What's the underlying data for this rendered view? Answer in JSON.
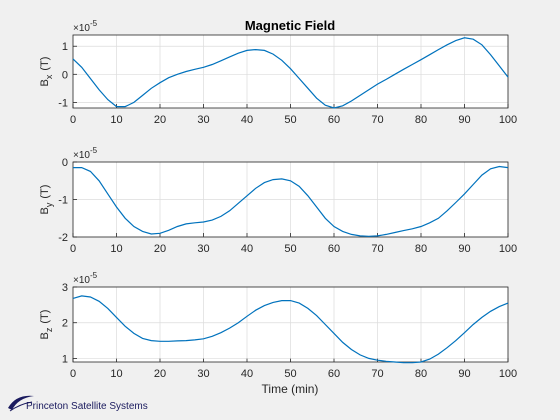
{
  "figure": {
    "title": "Magnetic Field",
    "xlabel": "Time (min)",
    "logo_text": "Princeton Satellite Systems"
  },
  "colors": {
    "line": "#0072bd",
    "axes": "#262626",
    "grid": "#dcdcdc",
    "figure_bg": "#f0f0f0",
    "logo": "#1a1a5e"
  },
  "chart_data": [
    {
      "type": "line",
      "title": "Magnetic Field",
      "ylabel": "B_x (T)",
      "ylabel_main": "B",
      "ylabel_sub": "x",
      "ylabel_unit": "(T)",
      "exponent_label": "×10",
      "exponent_power": "-5",
      "xlim": [
        0,
        100
      ],
      "ylim": [
        -1.2,
        1.4
      ],
      "xticks": [
        0,
        10,
        20,
        30,
        40,
        50,
        60,
        70,
        80,
        90,
        100
      ],
      "yticks": [
        -1,
        0,
        1
      ],
      "grid": true,
      "series": [
        {
          "x": [
            0,
            2,
            4,
            6,
            8,
            10,
            12,
            14,
            16,
            18,
            20,
            22,
            24,
            26,
            28,
            30,
            32,
            34,
            36,
            38,
            40,
            42,
            44,
            46,
            48,
            50,
            52,
            54,
            56,
            58,
            60,
            62,
            64,
            66,
            68,
            70,
            72,
            74,
            76,
            78,
            80,
            82,
            84,
            86,
            88,
            90,
            92,
            94,
            96,
            98,
            100
          ],
          "values": [
            0.55,
            0.25,
            -0.15,
            -0.55,
            -0.9,
            -1.15,
            -1.15,
            -1.0,
            -0.75,
            -0.5,
            -0.3,
            -0.12,
            0.0,
            0.1,
            0.18,
            0.25,
            0.35,
            0.48,
            0.62,
            0.75,
            0.85,
            0.88,
            0.85,
            0.72,
            0.5,
            0.2,
            -0.15,
            -0.5,
            -0.85,
            -1.1,
            -1.2,
            -1.12,
            -0.95,
            -0.75,
            -0.55,
            -0.35,
            -0.18,
            0.0,
            0.18,
            0.35,
            0.52,
            0.7,
            0.88,
            1.05,
            1.2,
            1.3,
            1.25,
            1.05,
            0.7,
            0.3,
            -0.1
          ]
        }
      ]
    },
    {
      "type": "line",
      "ylabel": "B_y (T)",
      "ylabel_main": "B",
      "ylabel_sub": "y",
      "ylabel_unit": "(T)",
      "exponent_label": "×10",
      "exponent_power": "-5",
      "xlim": [
        0,
        100
      ],
      "ylim": [
        -2,
        0
      ],
      "xticks": [
        0,
        10,
        20,
        30,
        40,
        50,
        60,
        70,
        80,
        90,
        100
      ],
      "yticks": [
        -2,
        -1,
        0
      ],
      "grid": true,
      "series": [
        {
          "x": [
            0,
            2,
            4,
            6,
            8,
            10,
            12,
            14,
            16,
            18,
            20,
            22,
            24,
            26,
            28,
            30,
            32,
            34,
            36,
            38,
            40,
            42,
            44,
            46,
            48,
            50,
            52,
            54,
            56,
            58,
            60,
            62,
            64,
            66,
            68,
            70,
            72,
            74,
            76,
            78,
            80,
            82,
            84,
            86,
            88,
            90,
            92,
            94,
            96,
            98,
            100
          ],
          "values": [
            -0.15,
            -0.15,
            -0.25,
            -0.5,
            -0.85,
            -1.2,
            -1.5,
            -1.72,
            -1.85,
            -1.92,
            -1.9,
            -1.82,
            -1.72,
            -1.65,
            -1.62,
            -1.6,
            -1.55,
            -1.45,
            -1.3,
            -1.1,
            -0.9,
            -0.7,
            -0.55,
            -0.47,
            -0.45,
            -0.5,
            -0.65,
            -0.9,
            -1.2,
            -1.5,
            -1.72,
            -1.85,
            -1.93,
            -1.97,
            -1.98,
            -1.97,
            -1.93,
            -1.88,
            -1.83,
            -1.78,
            -1.72,
            -1.62,
            -1.5,
            -1.3,
            -1.08,
            -0.85,
            -0.6,
            -0.35,
            -0.18,
            -0.12,
            -0.15
          ]
        }
      ]
    },
    {
      "type": "line",
      "xlabel": "Time (min)",
      "ylabel": "B_z (T)",
      "ylabel_main": "B",
      "ylabel_sub": "z",
      "ylabel_unit": "(T)",
      "exponent_label": "×10",
      "exponent_power": "-5",
      "xlim": [
        0,
        100
      ],
      "ylim": [
        0.9,
        3
      ],
      "xticks": [
        0,
        10,
        20,
        30,
        40,
        50,
        60,
        70,
        80,
        90,
        100
      ],
      "yticks": [
        1,
        2,
        3
      ],
      "grid": true,
      "series": [
        {
          "x": [
            0,
            2,
            4,
            6,
            8,
            10,
            12,
            14,
            16,
            18,
            20,
            22,
            24,
            26,
            28,
            30,
            32,
            34,
            36,
            38,
            40,
            42,
            44,
            46,
            48,
            50,
            52,
            54,
            56,
            58,
            60,
            62,
            64,
            66,
            68,
            70,
            72,
            74,
            76,
            78,
            80,
            82,
            84,
            86,
            88,
            90,
            92,
            94,
            96,
            98,
            100
          ],
          "values": [
            2.68,
            2.75,
            2.72,
            2.6,
            2.4,
            2.15,
            1.9,
            1.7,
            1.56,
            1.5,
            1.48,
            1.48,
            1.49,
            1.5,
            1.52,
            1.55,
            1.62,
            1.72,
            1.85,
            2.0,
            2.18,
            2.35,
            2.48,
            2.57,
            2.62,
            2.62,
            2.55,
            2.4,
            2.2,
            1.95,
            1.7,
            1.45,
            1.25,
            1.1,
            1.0,
            0.95,
            0.92,
            0.9,
            0.88,
            0.88,
            0.9,
            0.98,
            1.12,
            1.3,
            1.5,
            1.72,
            1.95,
            2.15,
            2.32,
            2.45,
            2.55
          ]
        }
      ]
    }
  ]
}
